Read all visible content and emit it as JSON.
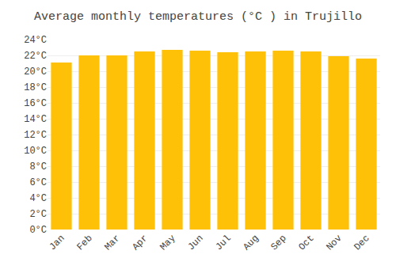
{
  "chart_data": {
    "type": "bar",
    "title": "Average monthly temperatures (°C ) in Trujillo",
    "categories": [
      "Jan",
      "Feb",
      "Mar",
      "Apr",
      "May",
      "Jun",
      "Jul",
      "Aug",
      "Sep",
      "Oct",
      "Nov",
      "Dec"
    ],
    "values": [
      21.1,
      22.0,
      22.0,
      22.5,
      22.7,
      22.6,
      22.4,
      22.5,
      22.6,
      22.5,
      21.9,
      21.6
    ],
    "color": "#FFC107",
    "ylim": [
      0,
      24
    ],
    "yticks": [
      {
        "value": 0,
        "label": "0°C"
      },
      {
        "value": 2,
        "label": "2°C"
      },
      {
        "value": 4,
        "label": "4°C"
      },
      {
        "value": 6,
        "label": "6°C"
      },
      {
        "value": 8,
        "label": "8°C"
      },
      {
        "value": 10,
        "label": "10°C"
      },
      {
        "value": 12,
        "label": "12°C"
      },
      {
        "value": 14,
        "label": "14°C"
      },
      {
        "value": 16,
        "label": "16°C"
      },
      {
        "value": 18,
        "label": "18°C"
      },
      {
        "value": 20,
        "label": "20°C"
      },
      {
        "value": 22,
        "label": "22°C"
      },
      {
        "value": 24,
        "label": "24°C"
      }
    ],
    "grid": true
  }
}
